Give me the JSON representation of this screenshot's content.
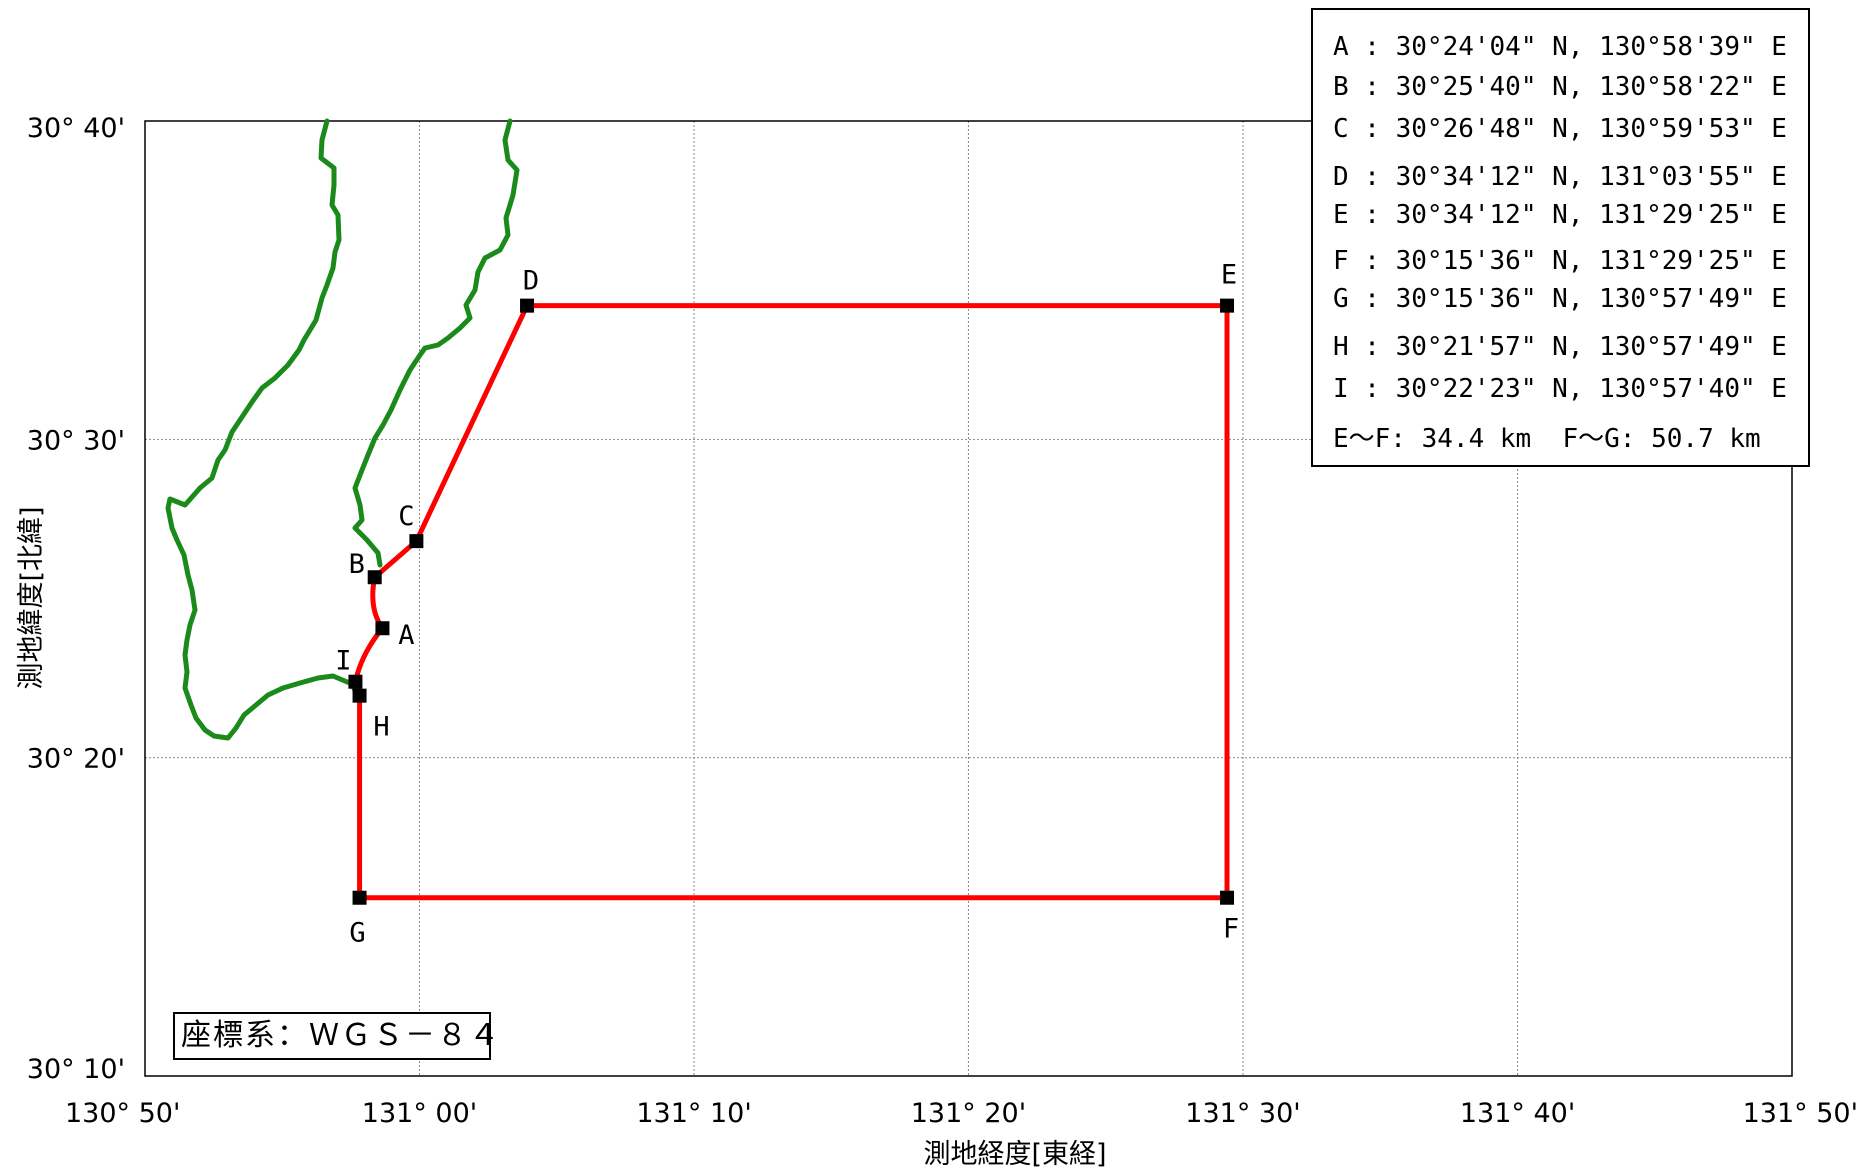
{
  "map": {
    "x_axis_label": "測地経度[東経]",
    "y_axis_label": "測地緯度[北緯]",
    "x_ticks": [
      {
        "label": "130° 50'",
        "lon": 130.8333
      },
      {
        "label": "131° 00'",
        "lon": 131.0
      },
      {
        "label": "131° 10'",
        "lon": 131.1667
      },
      {
        "label": "131° 20'",
        "lon": 131.3333
      },
      {
        "label": "131° 30'",
        "lon": 131.5
      },
      {
        "label": "131° 40'",
        "lon": 131.6667
      },
      {
        "label": "131° 50'",
        "lon": 131.8333
      }
    ],
    "y_ticks": [
      {
        "label": "30° 40'",
        "lat": 30.6667
      },
      {
        "label": "30° 30'",
        "lat": 30.5
      },
      {
        "label": "30° 20'",
        "lat": 30.3333
      },
      {
        "label": "30° 10'",
        "lat": 30.1667
      }
    ],
    "grid": true,
    "coordinate_system": "座標系：ＷＧＳ－８４",
    "colors": {
      "boundary": "#ff0000",
      "coastline": "#1a8a1a",
      "grid": "#888888",
      "marker": "#000000"
    },
    "points": [
      {
        "name": "A",
        "lat": 30.4011,
        "lon": 130.9775
      },
      {
        "name": "B",
        "lat": 30.4278,
        "lon": 130.9728
      },
      {
        "name": "C",
        "lat": 30.4467,
        "lon": 130.9981
      },
      {
        "name": "D",
        "lat": 30.57,
        "lon": 131.0653
      },
      {
        "name": "E",
        "lat": 30.57,
        "lon": 131.4903
      },
      {
        "name": "F",
        "lat": 30.26,
        "lon": 131.4903
      },
      {
        "name": "G",
        "lat": 30.26,
        "lon": 130.9636
      },
      {
        "name": "H",
        "lat": 30.3658,
        "lon": 130.9636
      },
      {
        "name": "I",
        "lat": 30.3731,
        "lon": 130.9611
      }
    ],
    "info_lines": [
      "A : 30°24'04\" N, 130°58'39\" E",
      "B : 30°25'40\" N, 130°58'22\" E",
      "C : 30°26'48\" N, 130°59'53\" E",
      "D : 30°34'12\" N, 131°03'55\" E",
      "E : 30°34'12\" N, 131°29'25\" E",
      "F : 30°15'36\" N, 131°29'25\" E",
      "G : 30°15'36\" N, 130°57'49\" E",
      "H : 30°21'57\" N, 130°57'49\" E",
      "I : 30°22'23\" N, 130°57'40\" E",
      "E～F: 34.4 km  F～G: 50.7 km"
    ]
  }
}
